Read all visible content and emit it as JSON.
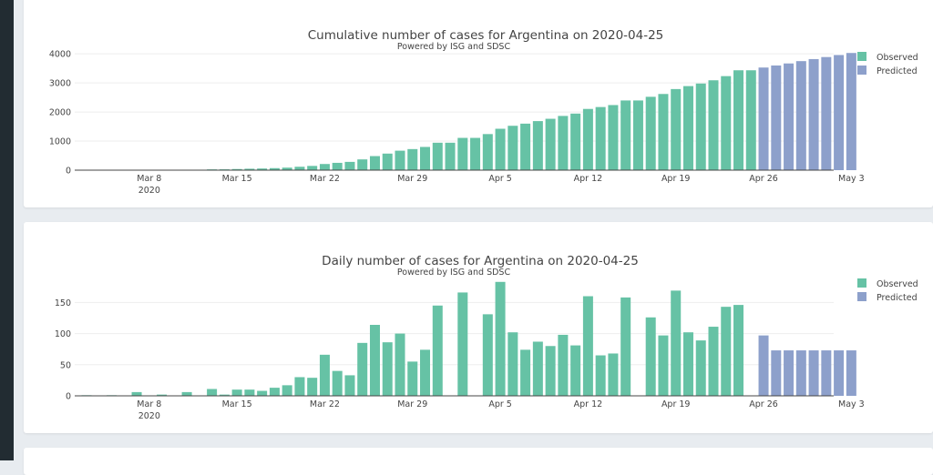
{
  "colors": {
    "observed": "#66c2a5",
    "predicted": "#8da0cb",
    "sidebar": "#222c32",
    "grid": "#eeeeee"
  },
  "chart_data": [
    {
      "type": "bar",
      "title": "Cumulative number of cases for Argentina on 2020-04-25",
      "subtitle": "Powered by ISG and SDSC",
      "xlabel": "",
      "ylabel": "",
      "ylim": [
        0,
        4350
      ],
      "yticks": [
        0,
        1000,
        2000,
        3000,
        4000
      ],
      "ytick_labels": [
        "0",
        "1000",
        "2000",
        "3000",
        "4000"
      ],
      "xticks": [
        {
          "label": "Mar 8",
          "sub": "2020",
          "day": 5
        },
        {
          "label": "Mar 15",
          "sub": "",
          "day": 12
        },
        {
          "label": "Mar 22",
          "sub": "",
          "day": 19
        },
        {
          "label": "Mar 29",
          "sub": "",
          "day": 26
        },
        {
          "label": "Apr 5",
          "sub": "",
          "day": 33
        },
        {
          "label": "Apr 12",
          "sub": "",
          "day": 40
        },
        {
          "label": "Apr 19",
          "sub": "",
          "day": 47
        },
        {
          "label": "Apr 26",
          "sub": "",
          "day": 54
        },
        {
          "label": "May 3",
          "sub": "",
          "day": 61
        }
      ],
      "start_date": "2020-03-03",
      "legend": {
        "position": "top-right",
        "entries": [
          "Observed",
          "Predicted"
        ]
      },
      "series": [
        {
          "name": "Observed",
          "start_day": 0,
          "values": [
            1,
            1,
            2,
            2,
            8,
            8,
            10,
            10,
            16,
            16,
            27,
            29,
            39,
            49,
            57,
            70,
            87,
            117,
            146,
            212,
            252,
            285,
            370,
            484,
            570,
            670,
            725,
            799,
            944,
            944,
            1110,
            1110,
            1241,
            1424,
            1526,
            1600,
            1687,
            1767,
            1865,
            1946,
            2106,
            2171,
            2239,
            2397,
            2397,
            2523,
            2620,
            2789,
            2891,
            2980,
            3091,
            3234,
            3435,
            3435
          ]
        },
        {
          "name": "Predicted",
          "start_day": 54,
          "values": [
            3530,
            3600,
            3670,
            3750,
            3820,
            3890,
            3960,
            4030
          ]
        }
      ]
    },
    {
      "type": "bar",
      "title": "Daily number of cases for Argentina on 2020-04-25",
      "subtitle": "Powered by ISG and SDSC",
      "xlabel": "",
      "ylabel": "",
      "ylim": [
        0,
        190
      ],
      "yticks": [
        0,
        50,
        100,
        150
      ],
      "ytick_labels": [
        "0",
        "50",
        "100",
        "150"
      ],
      "xticks": [
        {
          "label": "Mar 8",
          "sub": "2020",
          "day": 5
        },
        {
          "label": "Mar 15",
          "sub": "",
          "day": 12
        },
        {
          "label": "Mar 22",
          "sub": "",
          "day": 19
        },
        {
          "label": "Mar 29",
          "sub": "",
          "day": 26
        },
        {
          "label": "Apr 5",
          "sub": "",
          "day": 33
        },
        {
          "label": "Apr 12",
          "sub": "",
          "day": 40
        },
        {
          "label": "Apr 19",
          "sub": "",
          "day": 47
        },
        {
          "label": "Apr 26",
          "sub": "",
          "day": 54
        },
        {
          "label": "May 3",
          "sub": "",
          "day": 61
        }
      ],
      "start_date": "2020-03-03",
      "legend": {
        "position": "top-right",
        "entries": [
          "Observed",
          "Predicted"
        ]
      },
      "series": [
        {
          "name": "Observed",
          "start_day": 0,
          "values": [
            1,
            0,
            1,
            0,
            6,
            0,
            2,
            0,
            6,
            0,
            11,
            2,
            10,
            10,
            8,
            13,
            17,
            30,
            29,
            66,
            40,
            33,
            85,
            114,
            86,
            100,
            55,
            74,
            145,
            0,
            166,
            0,
            131,
            183,
            102,
            74,
            87,
            80,
            98,
            81,
            160,
            65,
            68,
            158,
            0,
            126,
            97,
            169,
            102,
            89,
            111,
            143,
            146,
            0
          ]
        },
        {
          "name": "Predicted",
          "start_day": 54,
          "values": [
            97,
            73,
            73,
            73,
            73,
            73,
            73,
            73
          ]
        }
      ]
    }
  ]
}
